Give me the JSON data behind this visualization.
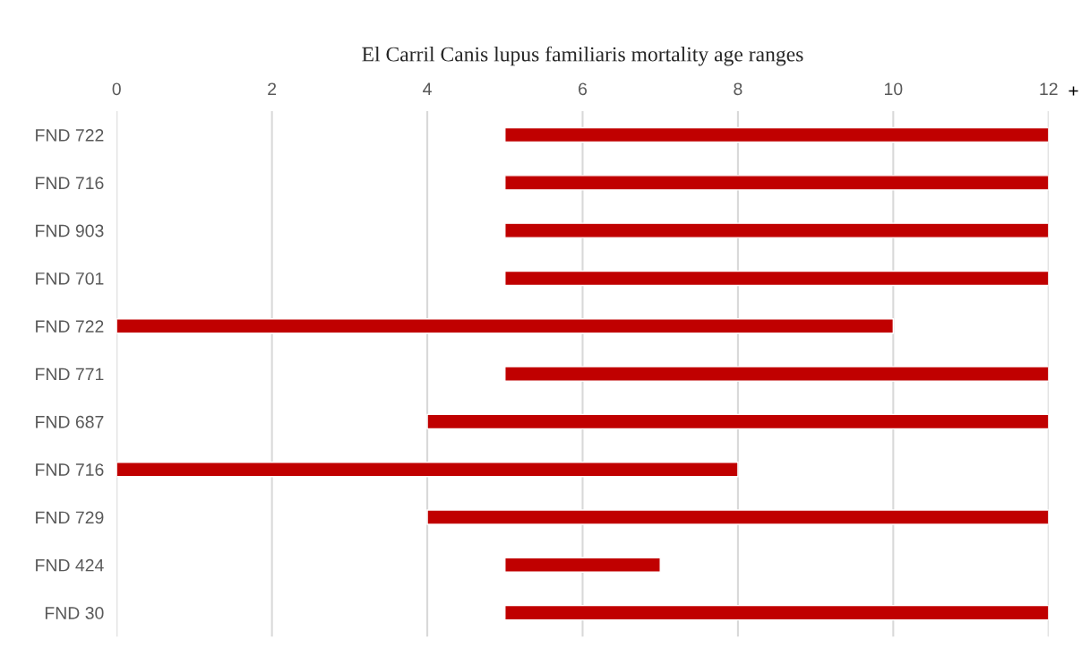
{
  "chart_data": {
    "type": "bar",
    "orientation": "horizontal",
    "title": "El Carril Canis lupus familiaris mortality age ranges",
    "categories": [
      "FND 722",
      "FND 716",
      "FND 903",
      "FND 701",
      "FND 722",
      "FND 771",
      "FND 687",
      "FND 716",
      "FND 729",
      "FND 424",
      "FND 30"
    ],
    "base": [
      5,
      5,
      5,
      5,
      0,
      5,
      4,
      0,
      4,
      5,
      5
    ],
    "values": [
      7,
      7,
      7,
      7,
      10,
      7,
      8,
      8,
      8,
      2,
      7
    ],
    "color": "#c00000",
    "xlim": [
      0,
      12
    ],
    "xticks": [
      0,
      2,
      4,
      6,
      8,
      10,
      12
    ],
    "grid": "x",
    "annotations": [
      "+"
    ]
  }
}
